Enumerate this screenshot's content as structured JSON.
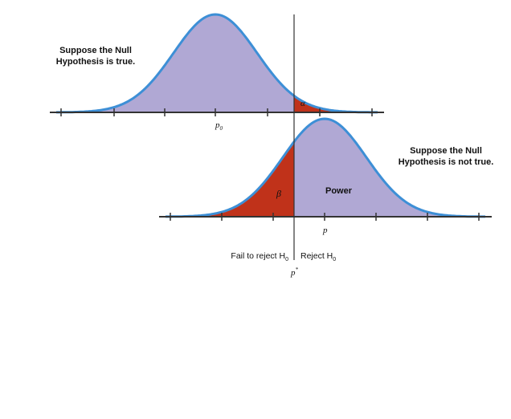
{
  "top_curve": {
    "caption_line1": "Suppose the Null",
    "caption_line2": "Hypothesis is true.",
    "mean_label": "p",
    "mean_subscript": "0",
    "alpha_label": "α"
  },
  "bottom_curve": {
    "caption_line1": "Suppose the Null",
    "caption_line2": "Hypothesis is not true.",
    "mean_label": "p",
    "beta_label": "β",
    "power_label": "Power"
  },
  "decision": {
    "fail_to_reject_text": "Fail to reject H",
    "fail_to_reject_sub": "0",
    "reject_text": "Reject H",
    "reject_sub": "0",
    "critical_label": "p",
    "critical_sup": "*"
  },
  "colors": {
    "curve_fill": "#b0a8d4",
    "curve_line": "#3d8fd6",
    "tail_fill": "#c0321a",
    "axis": "#333333"
  }
}
